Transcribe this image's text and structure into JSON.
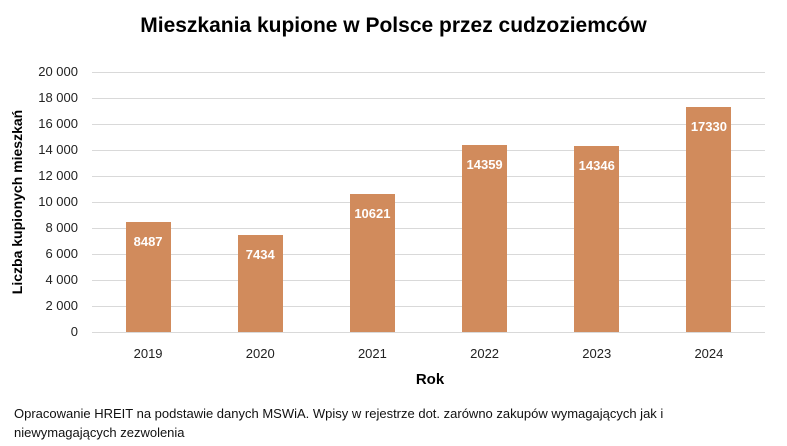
{
  "chart_data": {
    "type": "bar",
    "title": "Mieszkania kupione w Polsce przez cudzoziemców",
    "xlabel": "Rok",
    "ylabel": "Liczba kupionych mieszkań",
    "categories": [
      "2019",
      "2020",
      "2021",
      "2022",
      "2023",
      "2024"
    ],
    "values": [
      8487,
      7434,
      10621,
      14359,
      14346,
      17330
    ],
    "data_labels": [
      "8487",
      "7434",
      "10621",
      "14359",
      "14346",
      "17330"
    ],
    "ylim": [
      0,
      20000
    ],
    "yticks": [
      0,
      2000,
      4000,
      6000,
      8000,
      10000,
      12000,
      14000,
      16000,
      18000,
      20000
    ],
    "ytick_labels": [
      "0",
      "2 000",
      "4 000",
      "6 000",
      "8 000",
      "10 000",
      "12 000",
      "14 000",
      "16 000",
      "18 000",
      "20 000"
    ],
    "grid": true,
    "legend": null,
    "bar_color": "#d18b5c",
    "label_color": "#ffffff"
  },
  "footnote": "Opracowanie HREIT na podstawie danych MSWiA. Wpisy w rejestrze dot. zarówno zakupów wymagających jak i niewymagających zezwolenia"
}
